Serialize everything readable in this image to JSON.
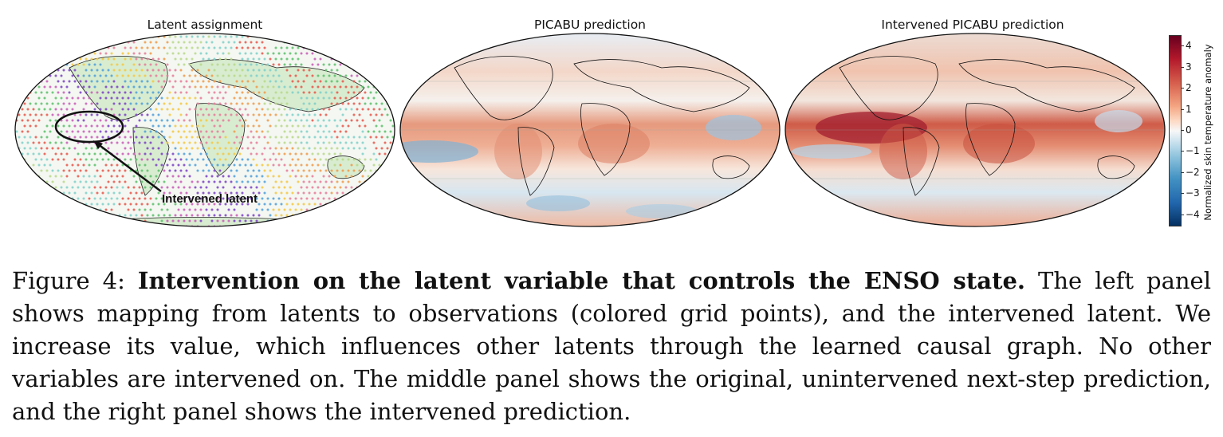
{
  "panels": [
    {
      "title": "Latent assignment",
      "annotation": "Intervened latent"
    },
    {
      "title": "PICABU prediction"
    },
    {
      "title": "Intervened PICABU prediction"
    }
  ],
  "colorbar": {
    "label": "Normalized skin temperature anomaly",
    "ticks": [
      "4",
      "3",
      "2",
      "1",
      "0",
      "−1",
      "−2",
      "−3",
      "−4"
    ],
    "range": [
      -4.5,
      4.5
    ],
    "colormap": "RdBu_r",
    "colors": {
      "max": "#67001f",
      "mid": "#f7f7f7",
      "min": "#053061"
    }
  },
  "caption": {
    "prefix": "Figure 4: ",
    "bold": "Intervention on the latent variable that controls the ENSO state.",
    "text": " The left panel shows mapping from latents to observations (colored grid points), and the intervened latent. We increase its value, which influences other latents through the learned causal graph. No other variables are intervened on. The middle panel shows the original, unintervened next-step prediction, and the right panel shows the intervened prediction."
  }
}
